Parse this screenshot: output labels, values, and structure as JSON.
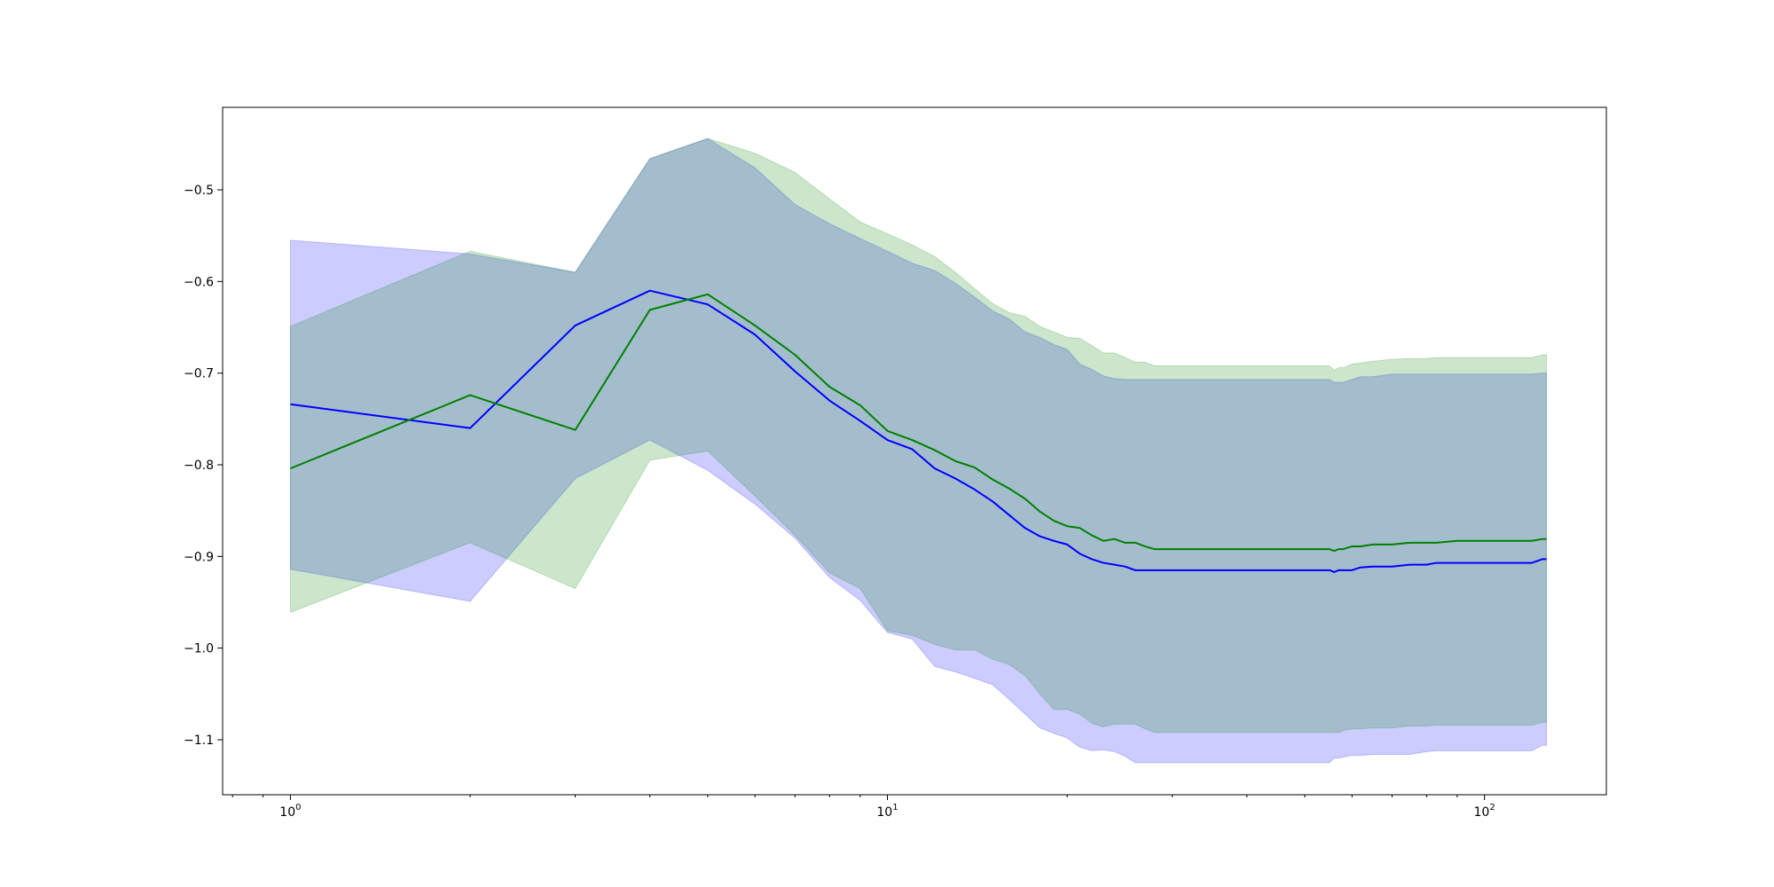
{
  "chart_data": {
    "type": "line",
    "title": "",
    "xlabel": "",
    "ylabel": "",
    "xscale": "log",
    "xlim": [
      0.77,
      160
    ],
    "ylim": [
      -1.16,
      -0.41
    ],
    "grid": false,
    "legend": "none",
    "x_ticks": [
      {
        "value": 1,
        "base": "10",
        "exp": "0"
      },
      {
        "value": 10,
        "base": "10",
        "exp": "1"
      },
      {
        "value": 100,
        "base": "10",
        "exp": "2"
      }
    ],
    "y_ticks": [
      {
        "value": -0.5,
        "label": "−0.5"
      },
      {
        "value": -0.6,
        "label": "−0.6"
      },
      {
        "value": -0.7,
        "label": "−0.7"
      },
      {
        "value": -0.8,
        "label": "−0.8"
      },
      {
        "value": -0.9,
        "label": "−0.9"
      },
      {
        "value": -1.0,
        "label": "−1.0"
      },
      {
        "value": -1.1,
        "label": "−1.1"
      }
    ],
    "series": [
      {
        "color": "#0000ff",
        "band_color": "#0000ff",
        "band_opacity": 0.2,
        "x": [
          1,
          2,
          3,
          4,
          5,
          6,
          7,
          8,
          9,
          10,
          11,
          12,
          13,
          14,
          15,
          16,
          17,
          18,
          19,
          20,
          21,
          22,
          23,
          24,
          25,
          26,
          27,
          28,
          30,
          35,
          40,
          45,
          50,
          55,
          56,
          57,
          58,
          60,
          62,
          65,
          70,
          75,
          80,
          83,
          90,
          100,
          110,
          120,
          125,
          127
        ],
        "mean": [
          -0.734,
          -0.76,
          -0.648,
          -0.61,
          -0.625,
          -0.658,
          -0.698,
          -0.73,
          -0.752,
          -0.773,
          -0.783,
          -0.804,
          -0.815,
          -0.827,
          -0.84,
          -0.855,
          -0.869,
          -0.878,
          -0.883,
          -0.887,
          -0.897,
          -0.903,
          -0.907,
          -0.909,
          -0.911,
          -0.915,
          -0.915,
          -0.915,
          -0.915,
          -0.915,
          -0.915,
          -0.915,
          -0.915,
          -0.915,
          -0.917,
          -0.915,
          -0.915,
          -0.915,
          -0.912,
          -0.911,
          -0.911,
          -0.909,
          -0.909,
          -0.907,
          -0.907,
          -0.907,
          -0.907,
          -0.907,
          -0.903,
          -0.903
        ],
        "upper": [
          -0.555,
          -0.57,
          -0.59,
          -0.466,
          -0.444,
          -0.476,
          -0.516,
          -0.537,
          -0.553,
          -0.567,
          -0.58,
          -0.588,
          -0.602,
          -0.617,
          -0.632,
          -0.641,
          -0.655,
          -0.661,
          -0.669,
          -0.674,
          -0.69,
          -0.696,
          -0.703,
          -0.706,
          -0.707,
          -0.707,
          -0.707,
          -0.707,
          -0.707,
          -0.707,
          -0.707,
          -0.707,
          -0.707,
          -0.707,
          -0.71,
          -0.71,
          -0.71,
          -0.707,
          -0.704,
          -0.704,
          -0.701,
          -0.701,
          -0.701,
          -0.701,
          -0.701,
          -0.701,
          -0.701,
          -0.701,
          -0.7,
          -0.7
        ],
        "lower": [
          -0.914,
          -0.949,
          -0.815,
          -0.773,
          -0.806,
          -0.843,
          -0.88,
          -0.923,
          -0.948,
          -0.983,
          -0.99,
          -1.02,
          -1.026,
          -1.033,
          -1.04,
          -1.056,
          -1.072,
          -1.087,
          -1.093,
          -1.098,
          -1.108,
          -1.112,
          -1.111,
          -1.113,
          -1.118,
          -1.125,
          -1.125,
          -1.125,
          -1.125,
          -1.125,
          -1.125,
          -1.125,
          -1.125,
          -1.125,
          -1.12,
          -1.12,
          -1.119,
          -1.117,
          -1.117,
          -1.116,
          -1.116,
          -1.116,
          -1.113,
          -1.112,
          -1.112,
          -1.112,
          -1.112,
          -1.112,
          -1.106,
          -1.106
        ]
      },
      {
        "color": "#008000",
        "band_color": "#008000",
        "band_opacity": 0.2,
        "x": [
          1,
          2,
          3,
          4,
          5,
          6,
          7,
          8,
          9,
          10,
          11,
          12,
          13,
          14,
          15,
          16,
          17,
          18,
          19,
          20,
          21,
          22,
          23,
          24,
          25,
          26,
          27,
          28,
          30,
          35,
          40,
          45,
          50,
          55,
          56,
          57,
          58,
          60,
          62,
          65,
          70,
          75,
          80,
          83,
          90,
          100,
          110,
          120,
          125,
          127
        ],
        "mean": [
          -0.804,
          -0.724,
          -0.762,
          -0.631,
          -0.614,
          -0.648,
          -0.68,
          -0.715,
          -0.735,
          -0.763,
          -0.773,
          -0.784,
          -0.796,
          -0.803,
          -0.816,
          -0.826,
          -0.837,
          -0.851,
          -0.861,
          -0.867,
          -0.869,
          -0.877,
          -0.883,
          -0.881,
          -0.885,
          -0.885,
          -0.889,
          -0.892,
          -0.892,
          -0.892,
          -0.892,
          -0.892,
          -0.892,
          -0.892,
          -0.894,
          -0.892,
          -0.892,
          -0.889,
          -0.889,
          -0.887,
          -0.887,
          -0.885,
          -0.885,
          -0.885,
          -0.883,
          -0.883,
          -0.883,
          -0.883,
          -0.881,
          -0.881
        ],
        "upper": [
          -0.649,
          -0.567,
          -0.59,
          -0.466,
          -0.444,
          -0.46,
          -0.481,
          -0.51,
          -0.535,
          -0.548,
          -0.56,
          -0.573,
          -0.59,
          -0.608,
          -0.624,
          -0.634,
          -0.638,
          -0.649,
          -0.655,
          -0.661,
          -0.662,
          -0.67,
          -0.678,
          -0.678,
          -0.683,
          -0.688,
          -0.688,
          -0.692,
          -0.692,
          -0.692,
          -0.692,
          -0.692,
          -0.692,
          -0.692,
          -0.697,
          -0.694,
          -0.694,
          -0.69,
          -0.689,
          -0.687,
          -0.685,
          -0.684,
          -0.684,
          -0.683,
          -0.683,
          -0.683,
          -0.683,
          -0.683,
          -0.68,
          -0.68
        ],
        "lower": [
          -0.961,
          -0.885,
          -0.935,
          -0.795,
          -0.785,
          -0.834,
          -0.877,
          -0.918,
          -0.935,
          -0.981,
          -0.986,
          -0.996,
          -1.002,
          -1.002,
          -1.012,
          -1.018,
          -1.03,
          -1.05,
          -1.067,
          -1.067,
          -1.072,
          -1.082,
          -1.086,
          -1.083,
          -1.083,
          -1.083,
          -1.088,
          -1.092,
          -1.092,
          -1.092,
          -1.092,
          -1.092,
          -1.092,
          -1.092,
          -1.092,
          -1.092,
          -1.09,
          -1.088,
          -1.088,
          -1.087,
          -1.087,
          -1.085,
          -1.085,
          -1.084,
          -1.084,
          -1.084,
          -1.084,
          -1.084,
          -1.081,
          -1.081
        ]
      }
    ]
  }
}
